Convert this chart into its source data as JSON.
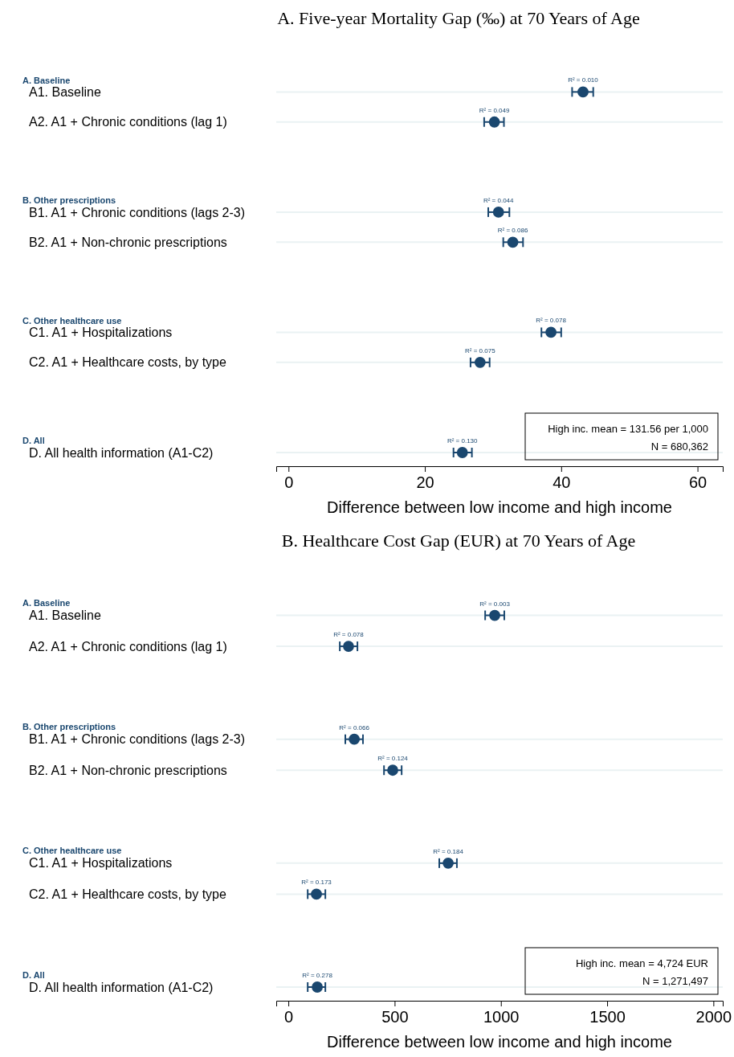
{
  "chart_data": [
    {
      "type": "scatter",
      "title": "A. Five-year Mortality Gap (‰) at 70 Years of Age",
      "xlabel": "Difference between low income and high income",
      "categories": [
        null,
        "A1. Baseline",
        "A2. A1 + Chronic conditions (lag 1)",
        null,
        null,
        "B1. A1 + Chronic conditions (lags 2-3)",
        "B2. A1 + Non-chronic prescriptions",
        null,
        null,
        "C1. A1 + Hospitalizations",
        "C2. A1 + Healthcare costs, by type",
        null,
        null,
        "D. All health information (A1-C2)"
      ],
      "color": "#1a476f",
      "orientation": "horizontal",
      "values": [
        null,
        43.2,
        30.2,
        null,
        null,
        30.8,
        32.9,
        null,
        null,
        38.5,
        28.1,
        null,
        null,
        25.5
      ],
      "errors": [
        null,
        [
          41.6,
          44.7
        ],
        [
          28.7,
          31.6
        ],
        null,
        null,
        [
          29.3,
          32.4
        ],
        [
          31.5,
          34.4
        ],
        null,
        null,
        [
          37.1,
          40.0
        ],
        [
          26.7,
          29.5
        ],
        null,
        null,
        [
          24.2,
          26.9
        ]
      ],
      "xlim": [
        -1.8,
        63.7
      ],
      "xticks": [
        0,
        20,
        40,
        60
      ],
      "grid": "y",
      "marker": "circle",
      "annotations": [
        "A. Baseline",
        "B. Other prescriptions",
        "C. Other healthcare use",
        "D. All",
        {
          "text": "R² = 0.010",
          "x": 43.2,
          "y": "A1. Baseline"
        },
        {
          "text": "R² = 0.049",
          "x": 30.2,
          "y": "A2. A1 + Chronic conditions (lag 1)"
        },
        {
          "text": "R² = 0.044",
          "x": 30.8,
          "y": "B1. A1 + Chronic conditions (lags 2-3)"
        },
        {
          "text": "R² = 0.086",
          "x": 32.9,
          "y": "B2. A1 + Non-chronic prescriptions"
        },
        {
          "text": "R² = 0.078",
          "x": 38.5,
          "y": "C1. A1 + Hospitalizations"
        },
        {
          "text": "R² = 0.075",
          "x": 28.1,
          "y": "C2. A1 + Healthcare costs, by type"
        },
        {
          "text": "R² = 0.130",
          "x": 25.5,
          "y": "D. All health information (A1-C2)"
        },
        "High inc. mean = 131.56 per 1,000",
        "N = 680,362"
      ]
    },
    {
      "type": "scatter",
      "title": "B. Healthcare Cost Gap (EUR) at 70 Years of Age",
      "xlabel": "Difference between low income and high income",
      "categories": [
        null,
        "A1. Baseline",
        "A2. A1 + Chronic conditions (lag 1)",
        null,
        null,
        "B1. A1 + Chronic conditions (lags 2-3)",
        "B2. A1 + Non-chronic prescriptions",
        null,
        null,
        "C1. A1 + Hospitalizations",
        "C2. A1 + Healthcare costs, by type",
        null,
        null,
        "D. All health information (A1-C2)"
      ],
      "color": "#1a476f",
      "orientation": "horizontal",
      "values": [
        null,
        971,
        283,
        null,
        null,
        310,
        491,
        null,
        null,
        752,
        132,
        null,
        null,
        136
      ],
      "errors": [
        null,
        [
          926,
          1016
        ],
        [
          242,
          325
        ],
        null,
        null,
        [
          268,
          351
        ],
        [
          450,
          533
        ],
        null,
        null,
        [
          710,
          793
        ],
        [
          91,
          174
        ],
        null,
        null,
        [
          91,
          174
        ]
      ],
      "xlim": [
        -57,
        2044
      ],
      "xticks": [
        0,
        500,
        1000,
        1500,
        2000
      ],
      "grid": "y",
      "marker": "circle",
      "annotations": [
        "A. Baseline",
        "B. Other prescriptions",
        "C. Other healthcare use",
        "D. All",
        {
          "text": "R² = 0.003",
          "x": 971,
          "y": "A1. Baseline"
        },
        {
          "text": "R² = 0.078",
          "x": 283,
          "y": "A2. A1 + Chronic conditions (lag 1)"
        },
        {
          "text": "R² = 0.066",
          "x": 310,
          "y": "B1. A1 + Chronic conditions (lags 2-3)"
        },
        {
          "text": "R² = 0.124",
          "x": 491,
          "y": "B2. A1 + Non-chronic prescriptions"
        },
        {
          "text": "R² = 0.184",
          "x": 752,
          "y": "C1. A1 + Hospitalizations"
        },
        {
          "text": "R² = 0.173",
          "x": 132,
          "y": "C2. A1 + Healthcare costs, by type"
        },
        {
          "text": "R² = 0.278",
          "x": 136,
          "y": "D. All health information (A1-C2)"
        },
        "High inc. mean = 4,724 EUR",
        "N = 1,271,497"
      ]
    }
  ]
}
